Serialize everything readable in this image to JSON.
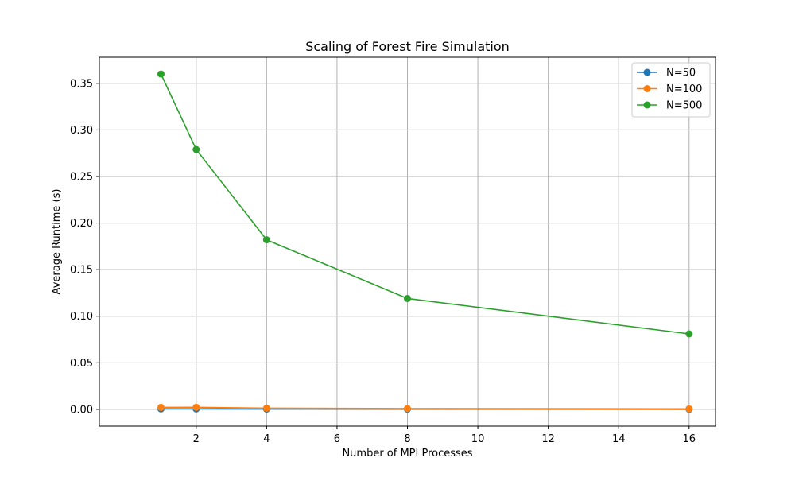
{
  "chart_data": {
    "type": "line",
    "title": "Scaling of Forest Fire Simulation",
    "xlabel": "Number of MPI Processes",
    "ylabel": "Average Runtime (s)",
    "x": [
      1,
      2,
      4,
      8,
      16
    ],
    "xlim": [
      -0.75,
      16.75
    ],
    "ylim": [
      -0.018,
      0.378
    ],
    "xticks": [
      2,
      4,
      6,
      8,
      10,
      12,
      14,
      16
    ],
    "yticks": [
      0.0,
      0.05,
      0.1,
      0.15,
      0.2,
      0.25,
      0.3,
      0.35
    ],
    "xtick_labels": [
      "2",
      "4",
      "6",
      "8",
      "10",
      "12",
      "14",
      "16"
    ],
    "ytick_labels": [
      "0.00",
      "0.05",
      "0.10",
      "0.15",
      "0.20",
      "0.25",
      "0.30",
      "0.35"
    ],
    "grid": true,
    "legend_position": "top-right",
    "series": [
      {
        "name": "N=50",
        "color": "#1f77b4",
        "values": [
          0.0005,
          0.0005,
          0.0003,
          0.0002,
          0.0001
        ]
      },
      {
        "name": "N=100",
        "color": "#ff7f0e",
        "values": [
          0.0021,
          0.0022,
          0.0013,
          0.0008,
          0.0005
        ]
      },
      {
        "name": "N=500",
        "color": "#2ca02c",
        "values": [
          0.36,
          0.279,
          0.182,
          0.119,
          0.081
        ]
      }
    ]
  }
}
